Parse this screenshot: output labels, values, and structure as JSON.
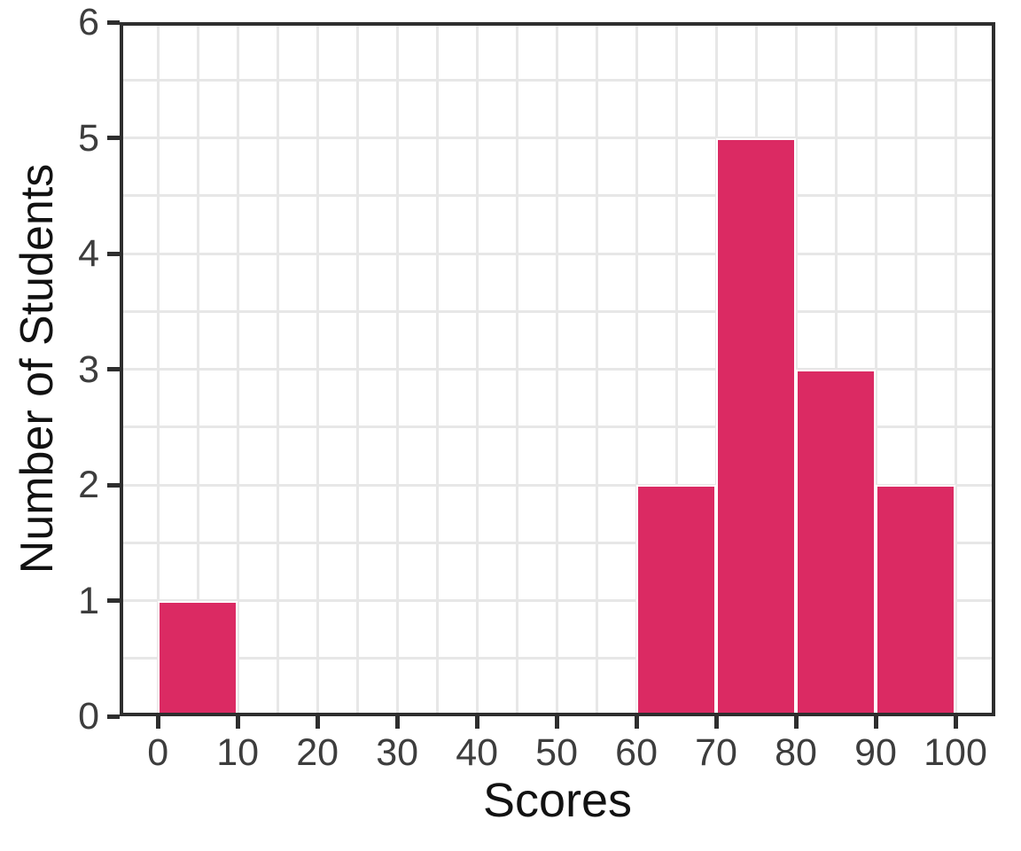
{
  "chart_data": {
    "type": "bar",
    "subtype": "histogram",
    "title": "",
    "xlabel": "Scores",
    "ylabel": "Number of Students",
    "bins": [
      [
        0,
        10
      ],
      [
        60,
        70
      ],
      [
        70,
        80
      ],
      [
        80,
        90
      ],
      [
        90,
        100
      ]
    ],
    "counts": [
      1,
      2,
      5,
      3,
      2
    ],
    "x_ticks": [
      0,
      10,
      20,
      30,
      40,
      50,
      60,
      70,
      80,
      90,
      100
    ],
    "y_ticks": [
      0,
      1,
      2,
      3,
      4,
      5,
      6
    ],
    "xlim": [
      -4.8,
      105
    ],
    "ylim": [
      0,
      6
    ],
    "grid": {
      "on": true,
      "x_step": 5,
      "y_step": 0.5,
      "color": "#e7e7e7"
    },
    "legend": null,
    "bar_color": "#db2a63",
    "bar_edge_color": "#ffffff",
    "axis_color": "#2e2e2e",
    "tick_label_color": "#3d3d3d",
    "axis_label_color": "#121212",
    "background_color": "#ffffff"
  }
}
